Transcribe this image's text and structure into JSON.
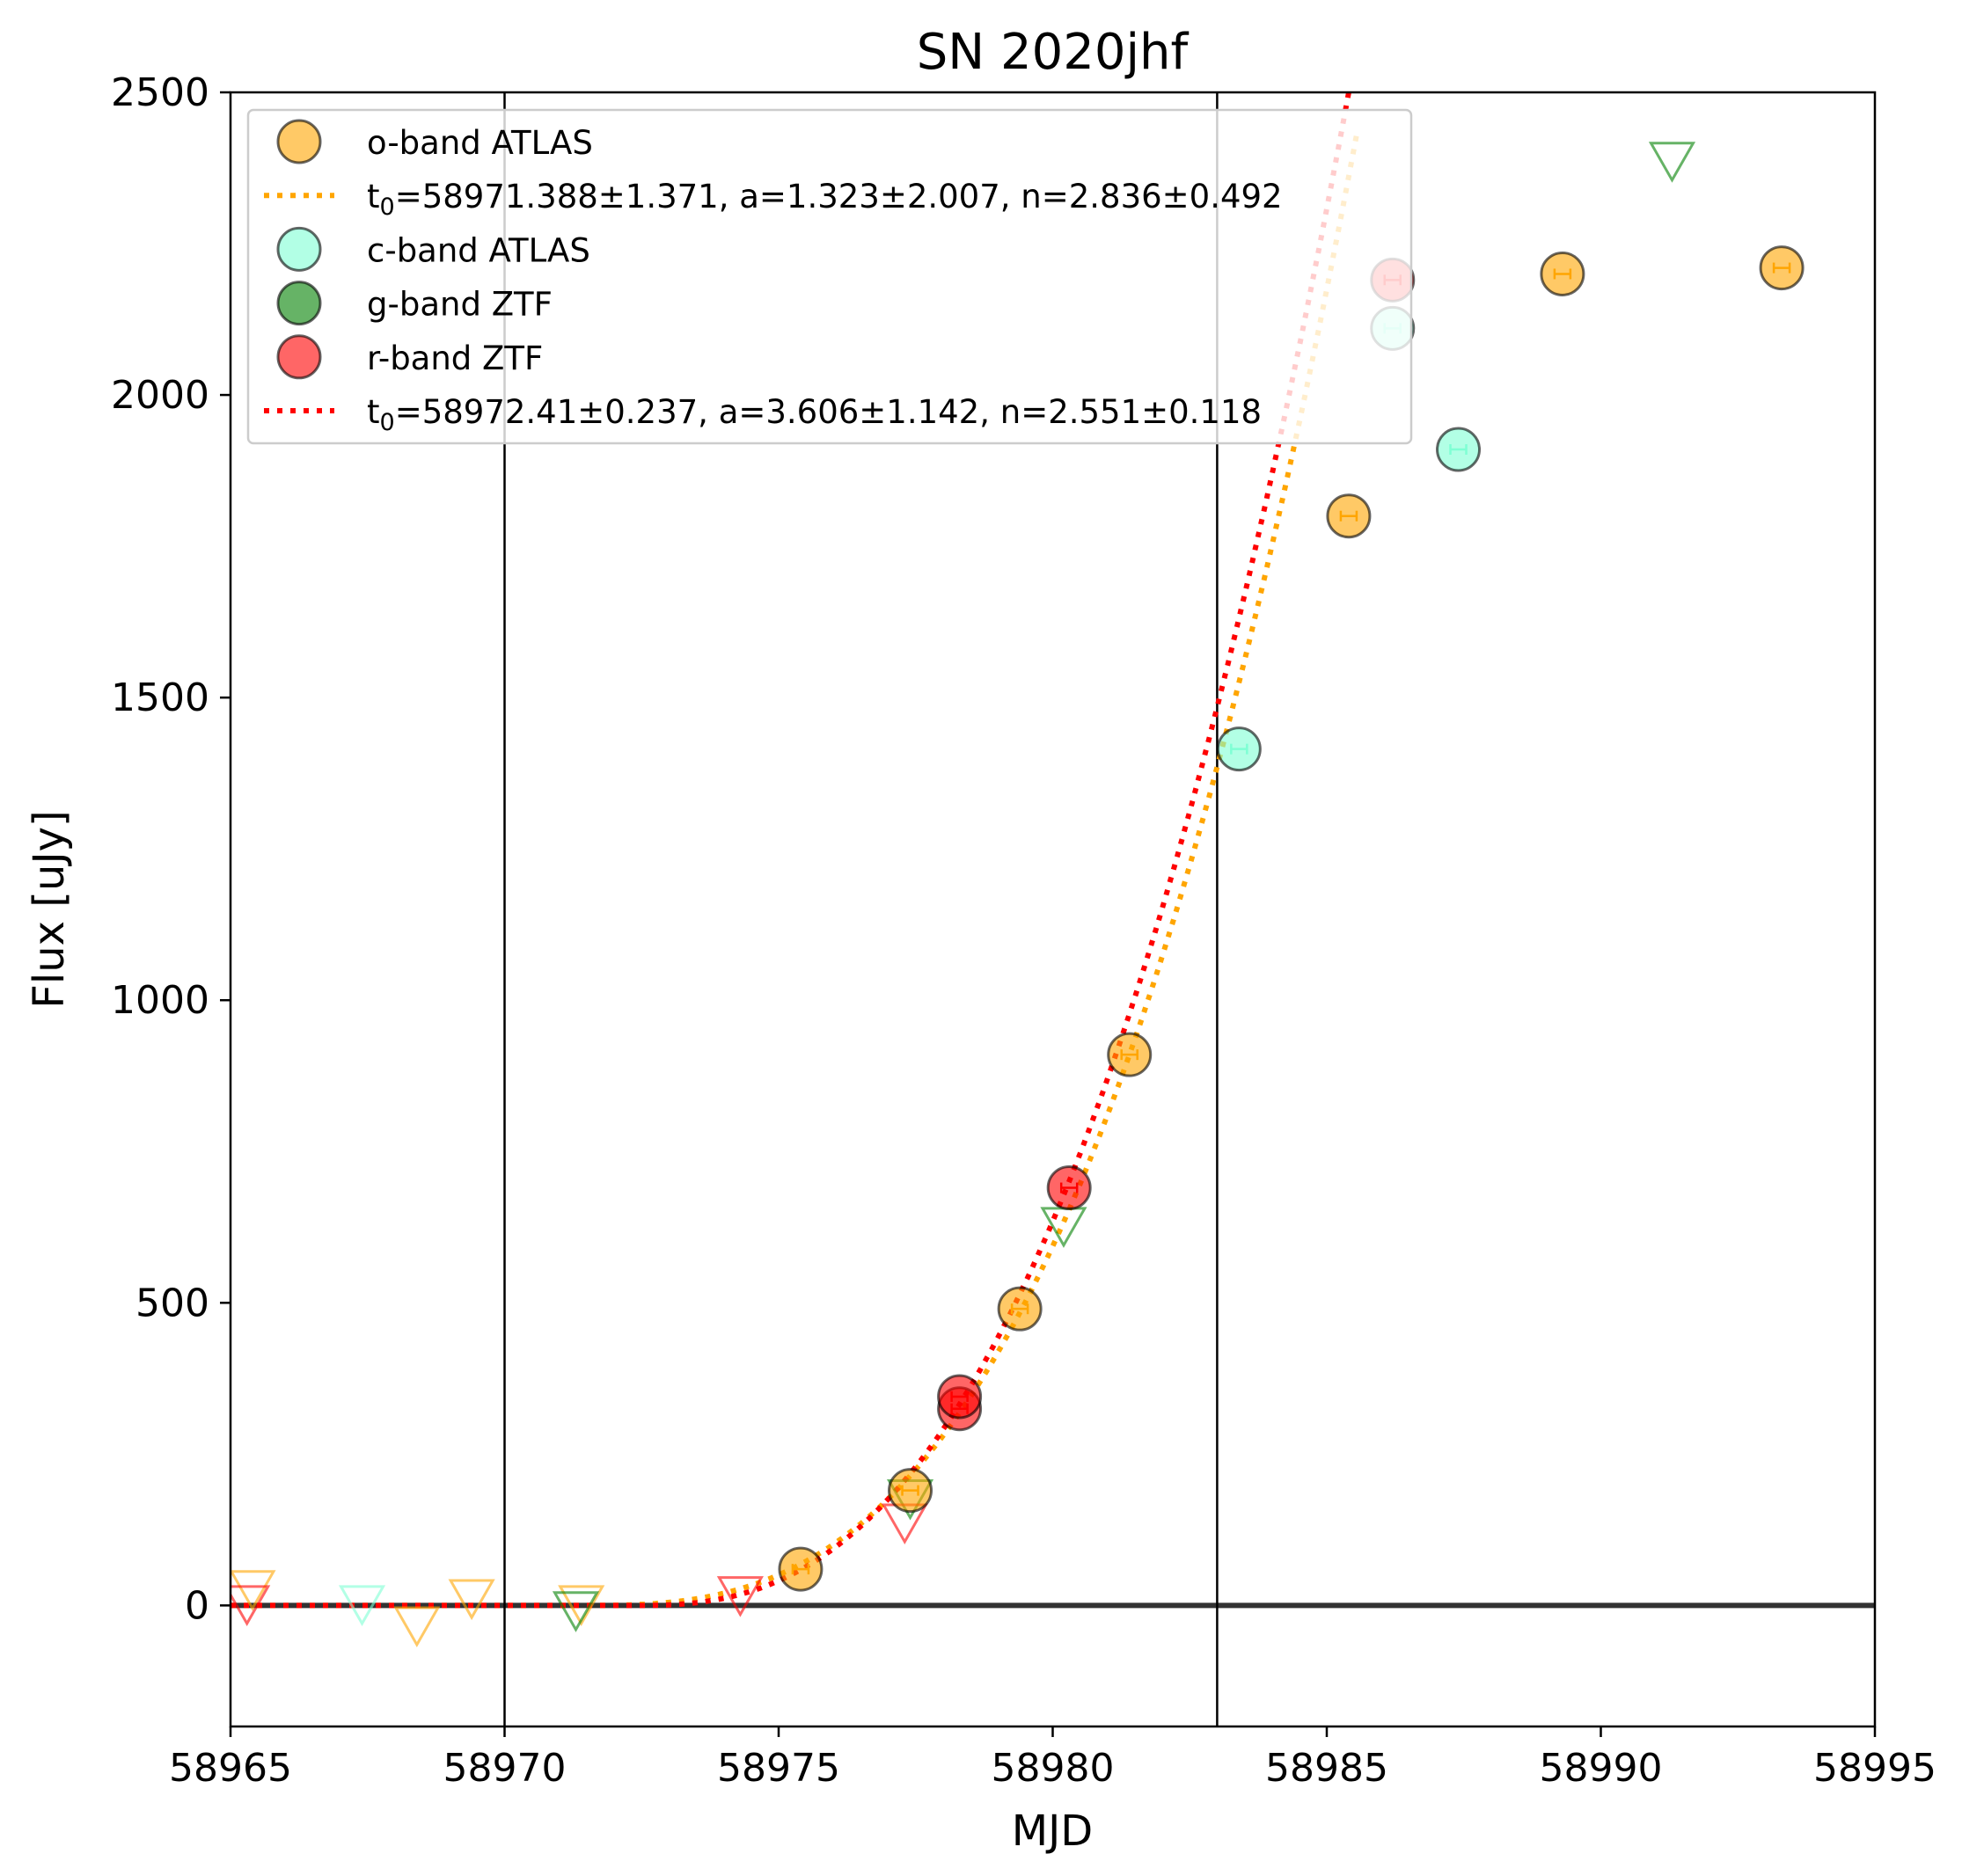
{
  "chart_data": {
    "type": "scatter",
    "title": "SN 2020jhf",
    "xlabel": "MJD",
    "ylabel": "Flux [uJy]",
    "xlim": [
      58965,
      58995
    ],
    "ylim": [
      -200,
      2500
    ],
    "xticks": [
      58965,
      58970,
      58975,
      58980,
      58985,
      58990,
      58995
    ],
    "yticks": [
      0,
      500,
      1000,
      1500,
      2000,
      2500
    ],
    "vlines": [
      58970,
      58983
    ],
    "hline": 0,
    "grid": false,
    "legend_position": "top-left",
    "colors": {
      "o": "#ffa500",
      "c": "#7fffd4",
      "g": "#008000",
      "r": "#ff0000",
      "zero": "#333333"
    },
    "series": [
      {
        "name": "o-band ATLAS",
        "band": "o",
        "marker": "circle",
        "x": [
          58975.4,
          58977.4,
          58979.4,
          58981.4,
          58985.4,
          58989.3,
          58993.3
        ],
        "y": [
          60,
          190,
          490,
          910,
          1800,
          2200,
          2210
        ]
      },
      {
        "name": "c-band ATLAS",
        "band": "c",
        "marker": "circle",
        "x": [
          58983.4,
          58986.2,
          58987.4
        ],
        "y": [
          1415,
          2110,
          1910
        ]
      },
      {
        "name": "g-band ZTF",
        "band": "g",
        "marker": "circle",
        "x": [],
        "y": []
      },
      {
        "name": "r-band ZTF",
        "band": "r",
        "marker": "circle",
        "x": [
          58978.3,
          58978.3,
          58980.3,
          58986.2
        ],
        "y": [
          325,
          345,
          690,
          2190
        ]
      }
    ],
    "upper_limits": [
      {
        "band": "o",
        "x": [
          58965.4,
          58968.4,
          58969.4,
          58971.4
        ],
        "y": [
          30,
          -30,
          15,
          5
        ]
      },
      {
        "band": "c",
        "x": [
          58967.4
        ],
        "y": [
          5
        ]
      },
      {
        "band": "g",
        "x": [
          58971.3,
          58977.4,
          58980.2,
          58991.3
        ],
        "y": [
          -5,
          180,
          630,
          2390
        ]
      },
      {
        "band": "r",
        "x": [
          58965.3,
          58974.3,
          58977.3
        ],
        "y": [
          5,
          20,
          140
        ]
      }
    ],
    "fits": [
      {
        "label": "t₀=58971.388±1.371, a=1.323±2.007, n=2.836±0.492",
        "band": "o",
        "t0": 58971.388,
        "a": 1.323,
        "n": 2.836,
        "x_end": 58985.6
      },
      {
        "label": "t₀=58972.41±0.237, a=3.606±1.142, n=2.551±0.118",
        "band": "r",
        "t0": 58972.41,
        "a": 3.606,
        "n": 2.551,
        "x_end": 58985.5
      }
    ],
    "legend": [
      {
        "kind": "marker",
        "band": "o",
        "label": "o-band ATLAS"
      },
      {
        "kind": "line",
        "band": "o",
        "label": "t₀=58971.388±1.371, a=1.323±2.007, n=2.836±0.492"
      },
      {
        "kind": "marker",
        "band": "c",
        "label": "c-band ATLAS"
      },
      {
        "kind": "marker",
        "band": "g",
        "label": "g-band ZTF"
      },
      {
        "kind": "marker",
        "band": "r",
        "label": "r-band ZTF"
      },
      {
        "kind": "line",
        "band": "r",
        "label": "t₀=58972.41±0.237, a=3.606±1.142, n=2.551±0.118"
      }
    ]
  }
}
